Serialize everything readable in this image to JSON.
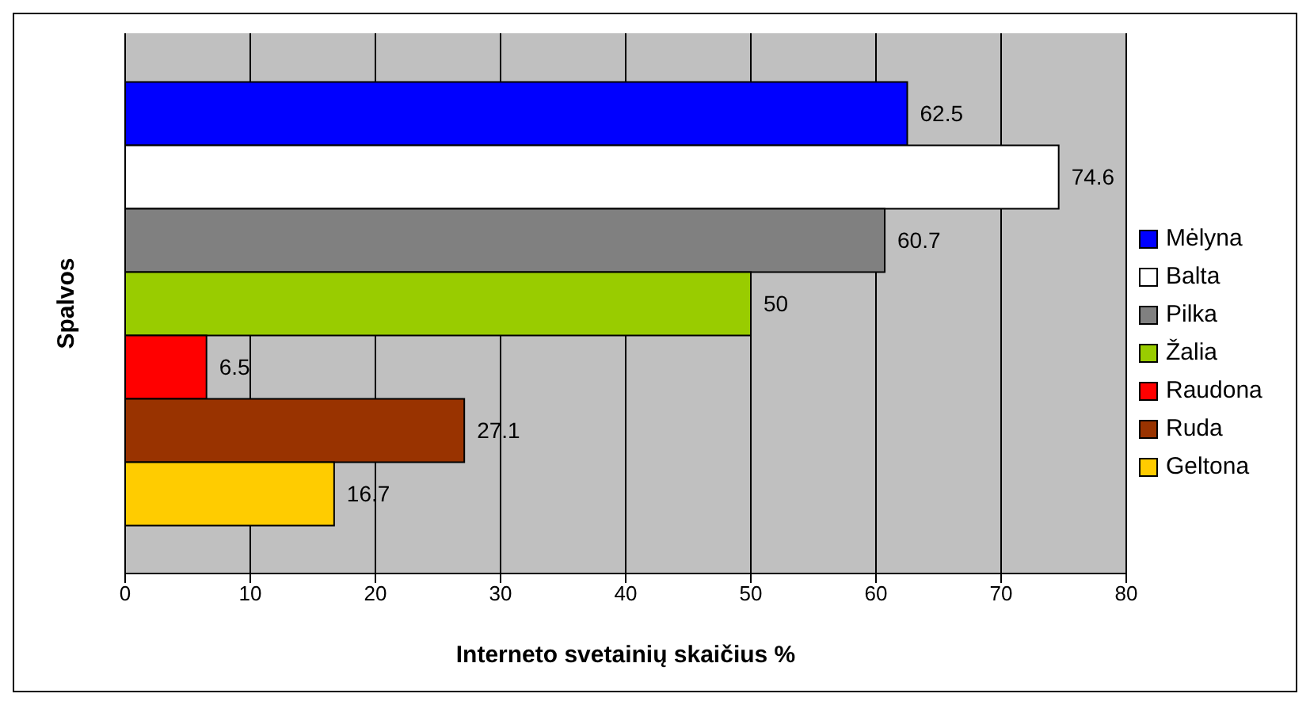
{
  "chart_data": {
    "type": "bar",
    "orientation": "horizontal",
    "categories": [
      null
    ],
    "series": [
      {
        "name": "Mėlyna",
        "color": "#0000ff",
        "values": [
          62.5
        ]
      },
      {
        "name": "Balta",
        "color": "#ffffff",
        "values": [
          74.6
        ]
      },
      {
        "name": "Pilka",
        "color": "#808080",
        "values": [
          60.7
        ]
      },
      {
        "name": "Žalia",
        "color": "#99cc00",
        "values": [
          50
        ]
      },
      {
        "name": "Raudona",
        "color": "#ff0000",
        "values": [
          6.5
        ]
      },
      {
        "name": "Ruda",
        "color": "#993300",
        "values": [
          27.1
        ]
      },
      {
        "name": "Geltona",
        "color": "#ffcc00",
        "values": [
          16.7
        ]
      }
    ],
    "xlim": [
      0,
      80
    ],
    "xticks": [
      0,
      10,
      20,
      30,
      40,
      50,
      60,
      70,
      80
    ],
    "xlabel": "Interneto svetainių skaičius %",
    "ylabel": "Spalvos",
    "data_labels": true,
    "grid": "x",
    "legend": "right"
  }
}
